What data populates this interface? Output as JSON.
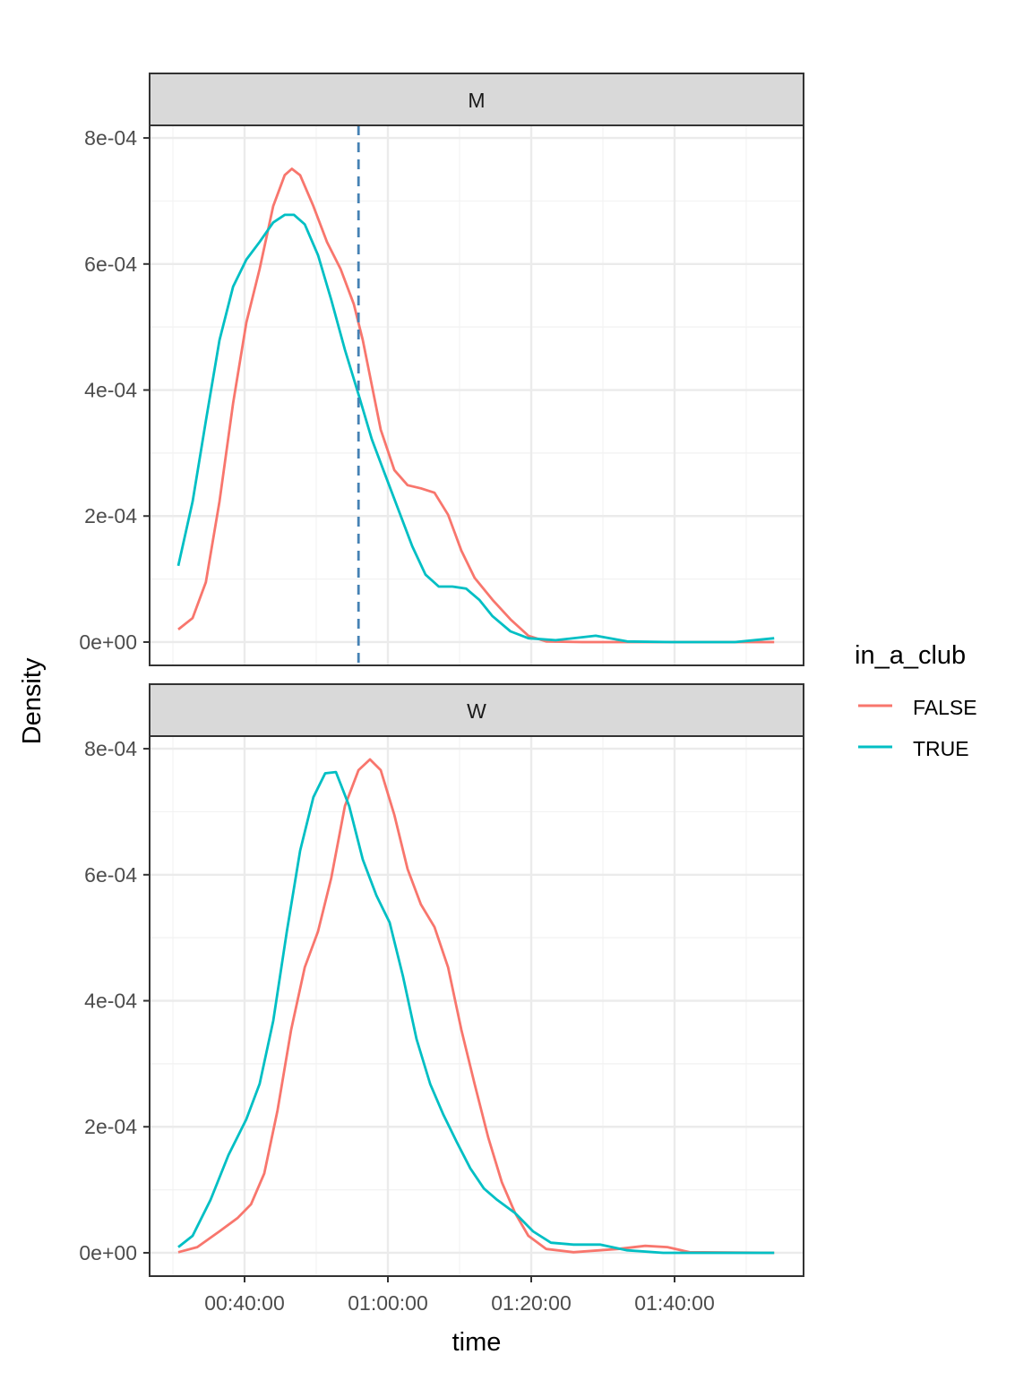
{
  "chart_data": {
    "type": "line",
    "subtype": "density, faceted",
    "xlabel": "time",
    "ylabel": "Density",
    "x_units": "minutes",
    "y_scale": 0.0001,
    "x_ticks": [
      {
        "value": 40,
        "label": "00:40:00"
      },
      {
        "value": 60,
        "label": "01:00:00"
      },
      {
        "value": 80,
        "label": "01:20:00"
      },
      {
        "value": 100,
        "label": "01:40:00"
      }
    ],
    "y_ticks": [
      {
        "value": 0,
        "label": "0e+00"
      },
      {
        "value": 2,
        "label": "2e-04"
      },
      {
        "value": 4,
        "label": "4e-04"
      },
      {
        "value": 6,
        "label": "6e-04"
      },
      {
        "value": 8,
        "label": "8e-04"
      }
    ],
    "xlim": [
      26.75,
      118
    ],
    "ylim": [
      -0.37,
      8.2
    ],
    "grid": true,
    "legend": {
      "title": "in_a_club",
      "placement": "right",
      "entries": [
        {
          "label": "FALSE",
          "color": "#F8766D"
        },
        {
          "label": "TRUE",
          "color": "#00BFC4"
        }
      ]
    },
    "panels": [
      {
        "strip": "M",
        "vline": {
          "x": 55.9,
          "color": "#4682B4",
          "style": "dashed"
        },
        "series": [
          {
            "name": "FALSE",
            "color": "#F8766D",
            "points": [
              [
                30.75,
                0.2
              ],
              [
                32.75,
                0.38
              ],
              [
                34.6,
                0.95
              ],
              [
                36.5,
                2.23
              ],
              [
                38.4,
                3.79
              ],
              [
                40.25,
                5.07
              ],
              [
                42.1,
                5.92
              ],
              [
                44.0,
                6.92
              ],
              [
                45.6,
                7.41
              ],
              [
                46.6,
                7.51
              ],
              [
                47.75,
                7.41
              ],
              [
                49.6,
                6.92
              ],
              [
                51.5,
                6.35
              ],
              [
                53.4,
                5.92
              ],
              [
                55.25,
                5.36
              ],
              [
                56.5,
                4.79
              ],
              [
                57.75,
                4.08
              ],
              [
                59.0,
                3.37
              ],
              [
                60.9,
                2.73
              ],
              [
                62.75,
                2.49
              ],
              [
                64.6,
                2.44
              ],
              [
                66.5,
                2.37
              ],
              [
                68.4,
                2.02
              ],
              [
                70.25,
                1.45
              ],
              [
                72.1,
                1.02
              ],
              [
                74.6,
                0.67
              ],
              [
                77.1,
                0.36
              ],
              [
                79.6,
                0.1
              ],
              [
                82.1,
                0.01
              ],
              [
                87.1,
                0
              ],
              [
                113.9,
                0
              ]
            ]
          },
          {
            "name": "TRUE",
            "color": "#00BFC4",
            "points": [
              [
                30.75,
                1.21
              ],
              [
                32.75,
                2.23
              ],
              [
                34.6,
                3.51
              ],
              [
                36.5,
                4.79
              ],
              [
                38.4,
                5.64
              ],
              [
                40.25,
                6.07
              ],
              [
                42.1,
                6.35
              ],
              [
                44.0,
                6.66
              ],
              [
                45.6,
                6.78
              ],
              [
                46.9,
                6.78
              ],
              [
                48.4,
                6.63
              ],
              [
                50.25,
                6.14
              ],
              [
                52.1,
                5.43
              ],
              [
                54.0,
                4.64
              ],
              [
                55.9,
                3.93
              ],
              [
                57.75,
                3.22
              ],
              [
                59.6,
                2.66
              ],
              [
                61.5,
                2.09
              ],
              [
                63.4,
                1.52
              ],
              [
                65.25,
                1.07
              ],
              [
                67.1,
                0.88
              ],
              [
                69.0,
                0.88
              ],
              [
                70.9,
                0.85
              ],
              [
                72.75,
                0.67
              ],
              [
                74.6,
                0.41
              ],
              [
                77.1,
                0.17
              ],
              [
                79.6,
                0.06
              ],
              [
                83.4,
                0.03
              ],
              [
                89.0,
                0.1
              ],
              [
                93.4,
                0.01
              ],
              [
                99.6,
                0
              ],
              [
                108.4,
                0
              ],
              [
                113.9,
                0.06
              ]
            ]
          }
        ]
      },
      {
        "strip": "W",
        "series": [
          {
            "name": "FALSE",
            "color": "#F8766D",
            "points": [
              [
                30.75,
                0.01
              ],
              [
                33.4,
                0.09
              ],
              [
                36.5,
                0.34
              ],
              [
                39.0,
                0.55
              ],
              [
                40.9,
                0.77
              ],
              [
                42.75,
                1.26
              ],
              [
                44.6,
                2.26
              ],
              [
                46.5,
                3.54
              ],
              [
                48.4,
                4.53
              ],
              [
                50.25,
                5.1
              ],
              [
                52.1,
                5.95
              ],
              [
                54.0,
                7.09
              ],
              [
                55.9,
                7.66
              ],
              [
                57.5,
                7.83
              ],
              [
                59.0,
                7.66
              ],
              [
                60.9,
                6.95
              ],
              [
                62.75,
                6.09
              ],
              [
                64.6,
                5.53
              ],
              [
                66.5,
                5.17
              ],
              [
                68.4,
                4.53
              ],
              [
                70.25,
                3.54
              ],
              [
                72.1,
                2.68
              ],
              [
                74.0,
                1.83
              ],
              [
                75.9,
                1.12
              ],
              [
                77.75,
                0.63
              ],
              [
                79.6,
                0.27
              ],
              [
                82.1,
                0.06
              ],
              [
                85.9,
                0.01
              ],
              [
                92.1,
                0.06
              ],
              [
                95.9,
                0.11
              ],
              [
                99.0,
                0.09
              ],
              [
                102.1,
                0.01
              ],
              [
                113.9,
                0
              ]
            ]
          },
          {
            "name": "TRUE",
            "color": "#00BFC4",
            "points": [
              [
                30.75,
                0.09
              ],
              [
                32.75,
                0.27
              ],
              [
                35.25,
                0.84
              ],
              [
                37.75,
                1.55
              ],
              [
                40.25,
                2.12
              ],
              [
                42.1,
                2.68
              ],
              [
                44.0,
                3.68
              ],
              [
                45.9,
                5.1
              ],
              [
                47.75,
                6.38
              ],
              [
                49.6,
                7.23
              ],
              [
                51.25,
                7.61
              ],
              [
                52.75,
                7.63
              ],
              [
                54.6,
                7.09
              ],
              [
                56.5,
                6.24
              ],
              [
                58.4,
                5.67
              ],
              [
                60.25,
                5.24
              ],
              [
                62.1,
                4.39
              ],
              [
                64.0,
                3.39
              ],
              [
                65.9,
                2.68
              ],
              [
                67.75,
                2.19
              ],
              [
                69.6,
                1.76
              ],
              [
                71.5,
                1.34
              ],
              [
                73.4,
                1.02
              ],
              [
                75.25,
                0.84
              ],
              [
                77.75,
                0.63
              ],
              [
                80.25,
                0.34
              ],
              [
                82.75,
                0.16
              ],
              [
                85.9,
                0.13
              ],
              [
                89.6,
                0.13
              ],
              [
                93.4,
                0.04
              ],
              [
                98.4,
                0
              ],
              [
                113.9,
                0
              ]
            ]
          }
        ]
      }
    ]
  }
}
